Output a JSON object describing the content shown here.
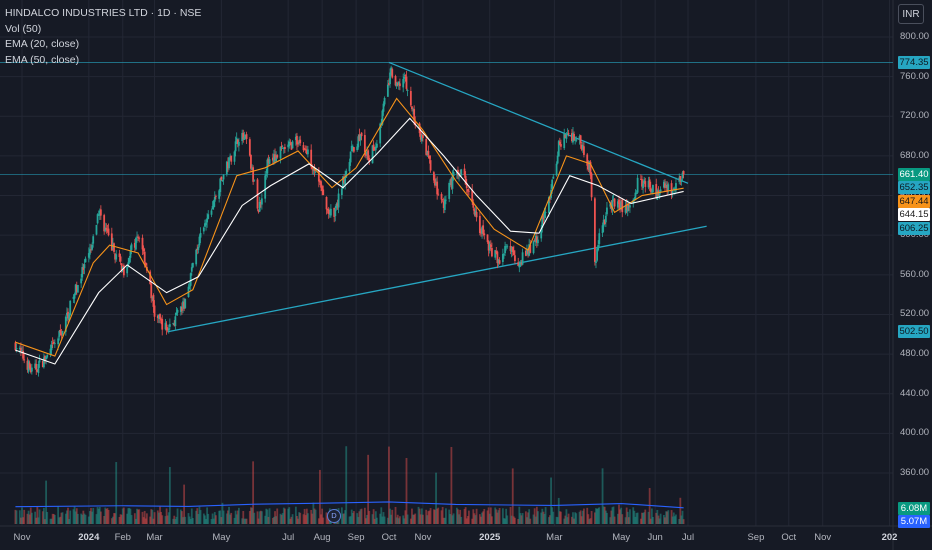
{
  "legend": {
    "title": "HINDALCO INDUSTRIES LTD · 1D · NSE",
    "vol": "Vol (50)",
    "ema20": "EMA (20, close)",
    "ema50": "EMA (50, close)"
  },
  "currency": "INR",
  "event_marker": "D",
  "price_tags": [
    {
      "text": "774.35",
      "value": 774.35,
      "bg": "#26a6c2",
      "fg": "#0e1a22"
    },
    {
      "text": "661.40",
      "value": 661.4,
      "bg": "#089981",
      "fg": "#ffffff"
    },
    {
      "text": "652.35",
      "value": 652.35,
      "bg": "#26a6c2",
      "fg": "#0e1a22"
    },
    {
      "text": "647.44",
      "value": 647.44,
      "bg": "#f7931a",
      "fg": "#1a1a1a"
    },
    {
      "text": "644.15",
      "value": 644.15,
      "bg": "#ffffff",
      "fg": "#1a1a1a"
    },
    {
      "text": "606.25",
      "value": 606.25,
      "bg": "#26a6c2",
      "fg": "#0e1a22"
    },
    {
      "text": "502.50",
      "value": 502.5,
      "bg": "#26a6c2",
      "fg": "#0e1a22"
    }
  ],
  "volume_tags": [
    {
      "text": "6.08M",
      "bg": "#089981",
      "fg": "#ffffff"
    },
    {
      "text": "5.07M",
      "bg": "#2962ff",
      "fg": "#ffffff"
    }
  ],
  "colors": {
    "background": "#161a25",
    "grid": "#232734",
    "up": "#26a69a",
    "down": "#ef5350",
    "ema20": "#f7931a",
    "ema50": "#ffffff",
    "trendline": "#26a6c2",
    "volume_ma": "#2962ff"
  },
  "chart_data": {
    "type": "candlestick",
    "title": "HINDALCO INDUSTRIES LTD · 1D · NSE",
    "y_ticks": [
      "800.00",
      "760.00",
      "720.00",
      "680.00",
      "640.00",
      "600.00",
      "560.00",
      "520.00",
      "480.00",
      "440.00",
      "400.00",
      "360.00"
    ],
    "x_ticks": [
      {
        "label": "Nov",
        "date": "2023-11-01"
      },
      {
        "label": "2024",
        "date": "2024-01-01",
        "bold": true
      },
      {
        "label": "Feb",
        "date": "2024-02-01"
      },
      {
        "label": "Mar",
        "date": "2024-03-01"
      },
      {
        "label": "May",
        "date": "2024-05-01"
      },
      {
        "label": "Jul",
        "date": "2024-07-01"
      },
      {
        "label": "Aug",
        "date": "2024-08-01"
      },
      {
        "label": "Sep",
        "date": "2024-09-01"
      },
      {
        "label": "Oct",
        "date": "2024-10-01"
      },
      {
        "label": "Nov",
        "date": "2024-11-01"
      },
      {
        "label": "2025",
        "date": "2025-01-01",
        "bold": true
      },
      {
        "label": "Mar",
        "date": "2025-03-01"
      },
      {
        "label": "May",
        "date": "2025-05-01"
      },
      {
        "label": "Jun",
        "date": "2025-06-01"
      },
      {
        "label": "Jul",
        "date": "2025-07-01"
      },
      {
        "label": "Sep",
        "date": "2025-09-01"
      },
      {
        "label": "Oct",
        "date": "2025-10-01"
      },
      {
        "label": "Nov",
        "date": "2025-11-01"
      },
      {
        "label": "202",
        "date": "2026-01-01",
        "bold": true
      }
    ],
    "price_path": [
      [
        "2023-10-26",
        490
      ],
      [
        "2023-11-10",
        462
      ],
      [
        "2023-11-25",
        478
      ],
      [
        "2023-12-08",
        505
      ],
      [
        "2023-12-20",
        545
      ],
      [
        "2023-12-28",
        568
      ],
      [
        "2024-01-04",
        588
      ],
      [
        "2024-01-10",
        625
      ],
      [
        "2024-01-18",
        600
      ],
      [
        "2024-01-26",
        578
      ],
      [
        "2024-02-02",
        565
      ],
      [
        "2024-02-10",
        588
      ],
      [
        "2024-02-17",
        600
      ],
      [
        "2024-02-24",
        560
      ],
      [
        "2024-03-01",
        520
      ],
      [
        "2024-03-12",
        505
      ],
      [
        "2024-03-20",
        515
      ],
      [
        "2024-03-28",
        530
      ],
      [
        "2024-04-08",
        585
      ],
      [
        "2024-04-18",
        615
      ],
      [
        "2024-05-01",
        655
      ],
      [
        "2024-05-10",
        680
      ],
      [
        "2024-05-17",
        700
      ],
      [
        "2024-05-24",
        695
      ],
      [
        "2024-06-04",
        625
      ],
      [
        "2024-06-12",
        672
      ],
      [
        "2024-06-22",
        682
      ],
      [
        "2024-07-02",
        690
      ],
      [
        "2024-07-10",
        696
      ],
      [
        "2024-07-20",
        680
      ],
      [
        "2024-07-28",
        660
      ],
      [
        "2024-08-05",
        625
      ],
      [
        "2024-08-12",
        618
      ],
      [
        "2024-08-20",
        655
      ],
      [
        "2024-08-28",
        685
      ],
      [
        "2024-09-05",
        700
      ],
      [
        "2024-09-12",
        675
      ],
      [
        "2024-09-20",
        695
      ],
      [
        "2024-09-28",
        740
      ],
      [
        "2024-10-03",
        765
      ],
      [
        "2024-10-08",
        748
      ],
      [
        "2024-10-15",
        760
      ],
      [
        "2024-10-20",
        735
      ],
      [
        "2024-10-25",
        715
      ],
      [
        "2024-11-04",
        685
      ],
      [
        "2024-11-12",
        650
      ],
      [
        "2024-11-20",
        628
      ],
      [
        "2024-11-28",
        658
      ],
      [
        "2024-12-06",
        665
      ],
      [
        "2024-12-14",
        640
      ],
      [
        "2024-12-22",
        610
      ],
      [
        "2025-01-02",
        585
      ],
      [
        "2025-01-10",
        575
      ],
      [
        "2025-01-18",
        590
      ],
      [
        "2025-01-26",
        572
      ],
      [
        "2025-02-04",
        582
      ],
      [
        "2025-02-12",
        595
      ],
      [
        "2025-02-20",
        620
      ],
      [
        "2025-02-27",
        650
      ],
      [
        "2025-03-05",
        690
      ],
      [
        "2025-03-12",
        702
      ],
      [
        "2025-03-20",
        700
      ],
      [
        "2025-03-27",
        690
      ],
      [
        "2025-04-03",
        665
      ],
      [
        "2025-04-07",
        568
      ],
      [
        "2025-04-11",
        600
      ],
      [
        "2025-04-20",
        630
      ],
      [
        "2025-04-28",
        632
      ],
      [
        "2025-05-08",
        625
      ],
      [
        "2025-05-16",
        652
      ],
      [
        "2025-05-24",
        655
      ],
      [
        "2025-06-02",
        640
      ],
      [
        "2025-06-10",
        650
      ],
      [
        "2025-06-18",
        645
      ],
      [
        "2025-06-24",
        655
      ],
      [
        "2025-06-27",
        661.4
      ]
    ],
    "ema20_path": [
      [
        "2023-10-26",
        492
      ],
      [
        "2023-12-01",
        478
      ],
      [
        "2024-01-05",
        572
      ],
      [
        "2024-01-20",
        590
      ],
      [
        "2024-02-15",
        582
      ],
      [
        "2024-03-12",
        530
      ],
      [
        "2024-04-05",
        545
      ],
      [
        "2024-05-15",
        660
      ],
      [
        "2024-06-10",
        668
      ],
      [
        "2024-07-10",
        685
      ],
      [
        "2024-08-10",
        648
      ],
      [
        "2024-09-01",
        668
      ],
      [
        "2024-10-08",
        738
      ],
      [
        "2024-11-01",
        706
      ],
      [
        "2024-12-01",
        655
      ],
      [
        "2025-01-05",
        606
      ],
      [
        "2025-02-05",
        585
      ],
      [
        "2025-03-12",
        680
      ],
      [
        "2025-04-03",
        672
      ],
      [
        "2025-04-25",
        623
      ],
      [
        "2025-05-20",
        640
      ],
      [
        "2025-06-27",
        647.44
      ]
    ],
    "ema50_path": [
      [
        "2023-10-26",
        484
      ],
      [
        "2023-12-01",
        470
      ],
      [
        "2024-01-10",
        542
      ],
      [
        "2024-02-05",
        570
      ],
      [
        "2024-03-12",
        542
      ],
      [
        "2024-04-10",
        558
      ],
      [
        "2024-05-20",
        630
      ],
      [
        "2024-06-15",
        650
      ],
      [
        "2024-07-20",
        672
      ],
      [
        "2024-08-20",
        648
      ],
      [
        "2024-09-20",
        682
      ],
      [
        "2024-10-20",
        718
      ],
      [
        "2024-11-20",
        680
      ],
      [
        "2024-12-20",
        640
      ],
      [
        "2025-01-20",
        604
      ],
      [
        "2025-02-15",
        602
      ],
      [
        "2025-03-15",
        660
      ],
      [
        "2025-04-10",
        650
      ],
      [
        "2025-05-10",
        632
      ],
      [
        "2025-06-27",
        644.15
      ]
    ],
    "trendlines": [
      {
        "from": [
          "2024-03-13",
          502.5
        ],
        "to": [
          "2025-07-18",
          609
        ]
      },
      {
        "from": [
          "2024-10-01",
          774.35
        ],
        "to": [
          "2025-07-01",
          652.35
        ]
      }
    ],
    "horizontal_lines": [
      774.35,
      661.4
    ],
    "volume_ma_path": [
      [
        "2023-10-26",
        5.4
      ],
      [
        "2024-02-01",
        5.7
      ],
      [
        "2024-04-01",
        5.5
      ],
      [
        "2024-06-01",
        6.2
      ],
      [
        "2024-08-01",
        6.5
      ],
      [
        "2024-10-01",
        6.9
      ],
      [
        "2024-12-01",
        6.1
      ],
      [
        "2025-03-01",
        5.8
      ],
      [
        "2025-05-01",
        6.4
      ],
      [
        "2025-06-27",
        5.07
      ]
    ],
    "last_volume": 6.08
  }
}
